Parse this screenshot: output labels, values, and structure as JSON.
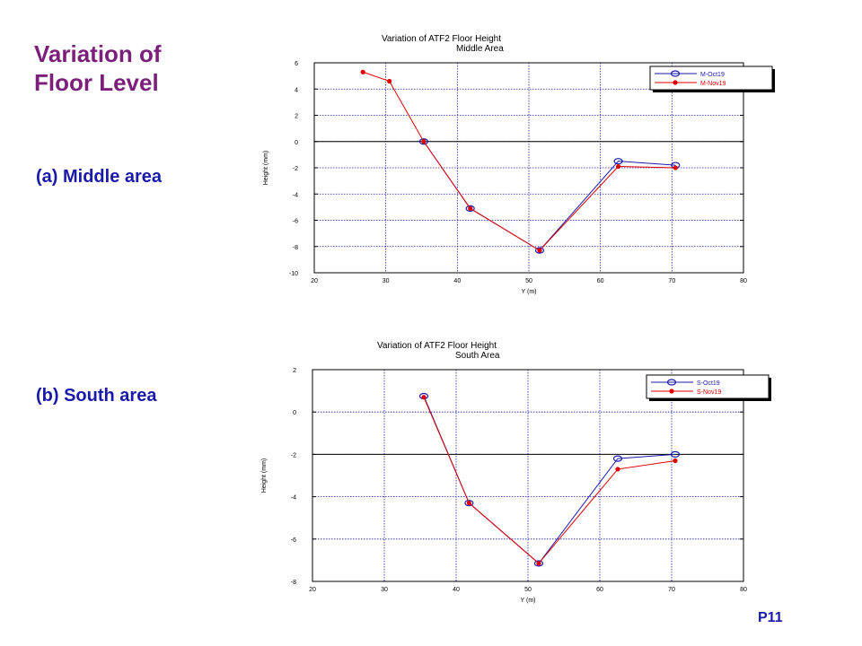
{
  "slide": {
    "title_line1": "Variation of",
    "title_line2": "Floor Level",
    "sub_a": "(a) Middle area",
    "sub_b": "(b) South area",
    "page_number": "P11"
  },
  "colors": {
    "title": "#7B1F7B",
    "subtitle": "#1A1AAA",
    "series_oct": "#1A1AAA",
    "series_nov": "#E00000",
    "grid": "#1A1AAA"
  },
  "chart_data": [
    {
      "type": "line",
      "title": "Variation of ATF2 Floor Height",
      "subtitle": "Middle Area",
      "xlabel": "Y (m)",
      "ylabel": "Height (mm)",
      "xlim": [
        20,
        80
      ],
      "ylim": [
        -10,
        6
      ],
      "xticks": [
        20,
        30,
        40,
        50,
        60,
        70,
        80
      ],
      "yticks": [
        -10,
        -8,
        -6,
        -4,
        -2,
        0,
        2,
        4,
        6
      ],
      "grid": true,
      "legend_position": "top-right",
      "series": [
        {
          "name": "M-Oct19",
          "color": "#1A1AAA",
          "marker": "open-circle",
          "points": [
            [
              35.3,
              0.0
            ],
            [
              41.8,
              -5.1
            ],
            [
              51.5,
              -8.3
            ],
            [
              62.5,
              -1.5
            ],
            [
              70.5,
              -1.8
            ]
          ]
        },
        {
          "name": "M-Nov19",
          "color": "#E00000",
          "marker": "filled-circle",
          "points": [
            [
              26.8,
              5.3
            ],
            [
              30.5,
              4.6
            ],
            [
              35.3,
              0.0
            ],
            [
              41.8,
              -5.1
            ],
            [
              51.5,
              -8.3
            ],
            [
              62.5,
              -1.9
            ],
            [
              70.5,
              -2.0
            ]
          ]
        }
      ]
    },
    {
      "type": "line",
      "title": "Variation of ATF2 Floor Height",
      "subtitle": "South Area",
      "xlabel": "Y (m)",
      "ylabel": "Height (mm)",
      "xlim": [
        20,
        80
      ],
      "ylim": [
        -8,
        2
      ],
      "xticks": [
        20,
        30,
        40,
        50,
        60,
        70,
        80
      ],
      "yticks": [
        -8,
        -6,
        -4,
        -2,
        0,
        2
      ],
      "grid": true,
      "legend_position": "top-right",
      "series": [
        {
          "name": "S-Oct19",
          "color": "#1A1AAA",
          "marker": "open-circle",
          "points": [
            [
              35.5,
              0.75
            ],
            [
              41.8,
              -4.3
            ],
            [
              51.5,
              -7.15
            ],
            [
              62.5,
              -2.2
            ],
            [
              70.5,
              -2.0
            ]
          ]
        },
        {
          "name": "S-Nov19",
          "color": "#E00000",
          "marker": "filled-circle",
          "points": [
            [
              35.5,
              0.7
            ],
            [
              41.8,
              -4.3
            ],
            [
              51.5,
              -7.15
            ],
            [
              62.5,
              -2.7
            ],
            [
              70.5,
              -2.3
            ]
          ]
        }
      ]
    }
  ]
}
